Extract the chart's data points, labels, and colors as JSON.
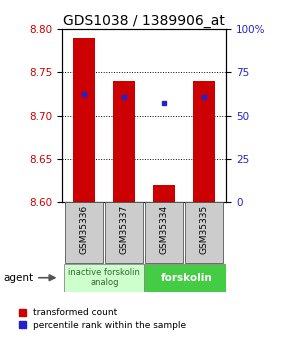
{
  "title": "GDS1038 / 1389906_at",
  "samples": [
    "GSM35336",
    "GSM35337",
    "GSM35334",
    "GSM35335"
  ],
  "bar_values": [
    8.79,
    8.74,
    8.62,
    8.74
  ],
  "bar_bottom": 8.6,
  "percentile_values": [
    8.725,
    8.722,
    8.715,
    8.722
  ],
  "ylim_left": [
    8.6,
    8.8
  ],
  "ylim_right": [
    0,
    100
  ],
  "yticks_left": [
    8.6,
    8.65,
    8.7,
    8.75,
    8.8
  ],
  "yticks_right": [
    0,
    25,
    50,
    75,
    100
  ],
  "bar_color": "#cc0000",
  "percentile_color": "#2222cc",
  "group1_label": "inactive forskolin\nanalog",
  "group2_label": "forskolin",
  "group1_color": "#ccffcc",
  "group2_color": "#44cc44",
  "agent_label": "agent",
  "legend1": "transformed count",
  "legend2": "percentile rank within the sample",
  "title_fontsize": 10,
  "tick_fontsize": 7.5,
  "bar_width": 0.55,
  "sample_box_color": "#cccccc",
  "sample_box_edge": "#555555"
}
